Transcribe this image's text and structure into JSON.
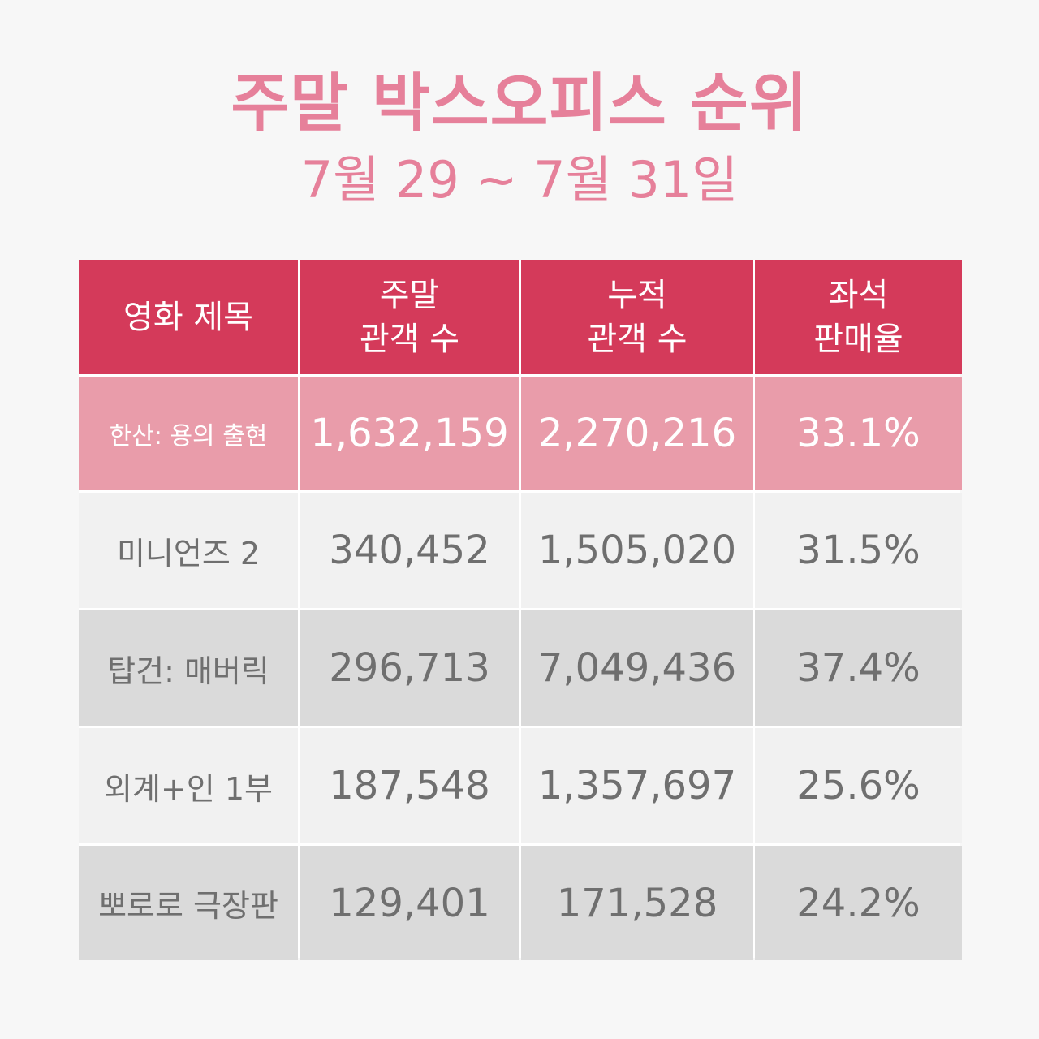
{
  "title": "주말 박스오피스 순위",
  "subtitle": "7월 29 ~ 7월 31일",
  "colors": {
    "title": "#e6809a",
    "header_bg": "#d43a5a",
    "highlight_row_bg": "#e99caa",
    "row_light_bg": "#f1f1f1",
    "row_gray_bg": "#dadada"
  },
  "chart_data": {
    "type": "table",
    "columns": [
      "영화 제목",
      "주말 관객 수",
      "누적 관객 수",
      "좌석 판매율"
    ],
    "header_lines": [
      [
        "영화 제목"
      ],
      [
        "주말",
        "관객 수"
      ],
      [
        "누적",
        "관객 수"
      ],
      [
        "좌석",
        "판매율"
      ]
    ],
    "rows": [
      {
        "title": "한산: 용의 출현",
        "weekend": "1,632,159",
        "total": "2,270,216",
        "seat_rate": "33.1%"
      },
      {
        "title": "미니언즈 2",
        "weekend": "340,452",
        "total": "1,505,020",
        "seat_rate": "31.5%"
      },
      {
        "title": "탑건: 매버릭",
        "weekend": "296,713",
        "total": "7,049,436",
        "seat_rate": "37.4%"
      },
      {
        "title": "외계+인 1부",
        "weekend": "187,548",
        "total": "1,357,697",
        "seat_rate": "25.6%"
      },
      {
        "title": "뽀로로 극장판",
        "weekend": "129,401",
        "total": "171,528",
        "seat_rate": "24.2%"
      }
    ]
  }
}
